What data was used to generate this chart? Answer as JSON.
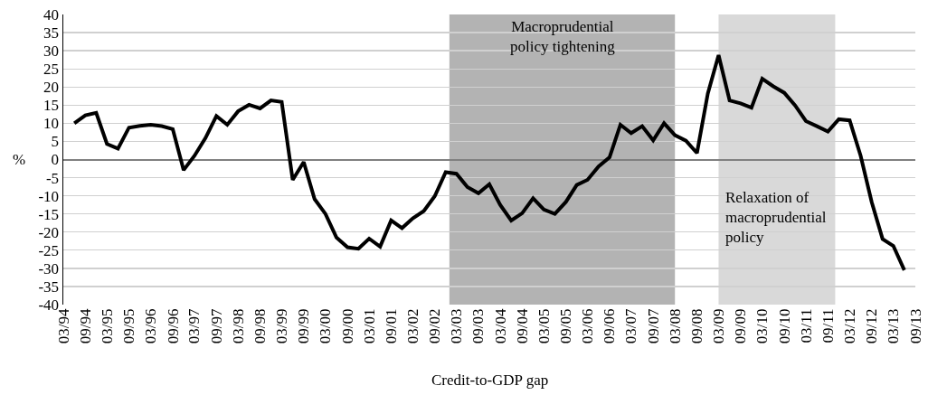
{
  "chart_data": {
    "type": "line",
    "xlabel": "Credit-to-GDP gap",
    "ylabel": "%",
    "x": [
      "1994-06",
      "1994-09",
      "1994-12",
      "1995-03",
      "1995-06",
      "1995-09",
      "1995-12",
      "1996-03",
      "1996-06",
      "1996-09",
      "1996-12",
      "1997-03",
      "1997-06",
      "1997-09",
      "1997-12",
      "1998-03",
      "1998-06",
      "1998-09",
      "1998-12",
      "1999-03",
      "1999-06",
      "1999-09",
      "1999-12",
      "2000-03",
      "2000-06",
      "2000-09",
      "2000-12",
      "2001-03",
      "2001-06",
      "2001-09",
      "2001-12",
      "2002-03",
      "2002-06",
      "2002-09",
      "2002-12",
      "2003-03",
      "2003-06",
      "2003-09",
      "2003-12",
      "2004-03",
      "2004-06",
      "2004-09",
      "2004-12",
      "2005-03",
      "2005-06",
      "2005-09",
      "2005-12",
      "2006-03",
      "2006-06",
      "2006-09",
      "2006-12",
      "2007-03",
      "2007-06",
      "2007-09",
      "2007-12",
      "2008-03",
      "2008-06",
      "2008-09",
      "2008-12",
      "2009-03",
      "2009-06",
      "2009-09",
      "2009-12",
      "2010-03",
      "2010-06",
      "2010-09",
      "2010-12",
      "2011-03",
      "2011-06",
      "2011-09",
      "2011-12",
      "2012-03",
      "2012-06",
      "2012-09",
      "2012-12",
      "2013-03",
      "2013-06"
    ],
    "series": [
      {
        "color": "#000000",
        "values": [
          10.0,
          12.2,
          12.9,
          4.3,
          3.0,
          8.8,
          9.3,
          9.6,
          9.2,
          8.4,
          -2.9,
          1.0,
          5.9,
          12.0,
          9.6,
          13.3,
          15.1,
          14.1,
          16.3,
          15.9,
          -5.6,
          -0.7,
          -10.9,
          -15.0,
          -21.5,
          -24.2,
          -24.6,
          -21.8,
          -24.0,
          -16.8,
          -18.9,
          -16.2,
          -14.2,
          -10.1,
          -3.5,
          -3.9,
          -7.6,
          -9.3,
          -6.8,
          -12.5,
          -16.8,
          -14.8,
          -10.7,
          -13.8,
          -15.0,
          -11.7,
          -7.0,
          -5.6,
          -1.9,
          0.6,
          9.6,
          7.3,
          9.2,
          5.3,
          10.0,
          6.7,
          5.2,
          1.8,
          18.2,
          28.8,
          16.3,
          15.5,
          14.3,
          22.3,
          20.2,
          18.4,
          14.9,
          10.6,
          9.2,
          7.7,
          11.1,
          10.8,
          1.0,
          -11.7,
          -21.9,
          -23.8,
          -30.5
        ]
      }
    ],
    "xlim": [
      "1994-03",
      "2013-09"
    ],
    "xticks": [
      {
        "value": "1994-03",
        "label": "03/94"
      },
      {
        "value": "1994-09",
        "label": "09/94"
      },
      {
        "value": "1995-03",
        "label": "03/95"
      },
      {
        "value": "1995-09",
        "label": "09/95"
      },
      {
        "value": "1996-03",
        "label": "03/96"
      },
      {
        "value": "1996-09",
        "label": "09/96"
      },
      {
        "value": "1997-03",
        "label": "03/97"
      },
      {
        "value": "1997-09",
        "label": "09/97"
      },
      {
        "value": "1998-03",
        "label": "03/98"
      },
      {
        "value": "1998-09",
        "label": "09/98"
      },
      {
        "value": "1999-03",
        "label": "03/99"
      },
      {
        "value": "1999-09",
        "label": "09/99"
      },
      {
        "value": "2000-03",
        "label": "03/00"
      },
      {
        "value": "2000-09",
        "label": "09/00"
      },
      {
        "value": "2001-03",
        "label": "03/01"
      },
      {
        "value": "2001-09",
        "label": "09/01"
      },
      {
        "value": "2002-03",
        "label": "03/02"
      },
      {
        "value": "2002-09",
        "label": "09/02"
      },
      {
        "value": "2003-03",
        "label": "03/03"
      },
      {
        "value": "2003-09",
        "label": "09/03"
      },
      {
        "value": "2004-03",
        "label": "03/04"
      },
      {
        "value": "2004-09",
        "label": "09/04"
      },
      {
        "value": "2005-03",
        "label": "03/05"
      },
      {
        "value": "2005-09",
        "label": "09/05"
      },
      {
        "value": "2006-03",
        "label": "03/06"
      },
      {
        "value": "2006-09",
        "label": "09/06"
      },
      {
        "value": "2007-03",
        "label": "03/07"
      },
      {
        "value": "2007-09",
        "label": "09/07"
      },
      {
        "value": "2008-03",
        "label": "03/08"
      },
      {
        "value": "2008-09",
        "label": "09/08"
      },
      {
        "value": "2009-03",
        "label": "03/09"
      },
      {
        "value": "2009-09",
        "label": "09/09"
      },
      {
        "value": "2010-03",
        "label": "03/10"
      },
      {
        "value": "2010-09",
        "label": "09/10"
      },
      {
        "value": "2011-03",
        "label": "03/11"
      },
      {
        "value": "2011-09",
        "label": "09/11"
      },
      {
        "value": "2012-03",
        "label": "03/12"
      },
      {
        "value": "2012-09",
        "label": "09/12"
      },
      {
        "value": "2013-03",
        "label": "03/13"
      },
      {
        "value": "2013-09",
        "label": "09/13"
      }
    ],
    "ylim": [
      -40,
      40
    ],
    "yticks": [
      -40,
      -35,
      -30,
      -25,
      -20,
      -15,
      -10,
      -5,
      0,
      5,
      10,
      15,
      20,
      25,
      30,
      35,
      40
    ],
    "grid": "y",
    "marker": "none",
    "line_style": "solid",
    "bands": [
      {
        "axis": "x",
        "from": "2003-01",
        "to": "2008-03",
        "label": "Macroprudential\npolicy tightening",
        "color": "#b3b3b3"
      },
      {
        "axis": "x",
        "from": "2009-03",
        "to": "2011-11",
        "label": "Relaxation of\nmacroprudential\npolicy",
        "color": "#d9d9d9"
      }
    ]
  }
}
